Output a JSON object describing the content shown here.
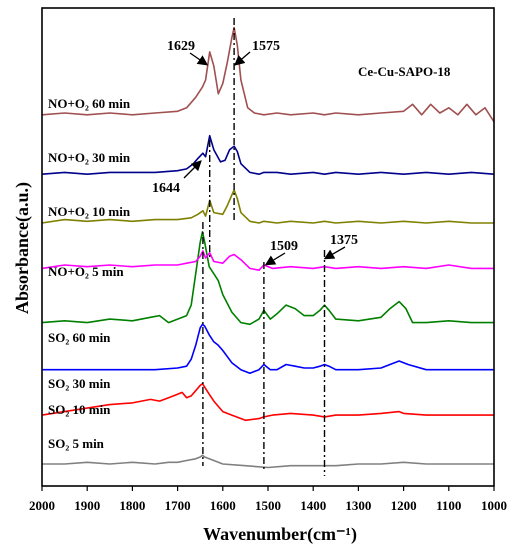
{
  "chart_data": {
    "type": "line",
    "title": "Ce-Cu-SAPO-18",
    "xlabel": "Wavenumber(cm⁻¹)",
    "ylabel": "Absorbance(a.u.)",
    "xlim": [
      2000,
      1000
    ],
    "x_reversed": true,
    "x_ticks": [
      2000,
      1900,
      1800,
      1700,
      1600,
      1500,
      1400,
      1300,
      1200,
      1100,
      1000
    ],
    "y_ticks_shown": false,
    "grid": false,
    "legend": "none",
    "series": [
      {
        "label": "SO₂ 5 min",
        "color": "#808080",
        "baseline": 0,
        "x": [
          2000,
          1950,
          1900,
          1850,
          1800,
          1750,
          1720,
          1700,
          1680,
          1660,
          1650,
          1645,
          1640,
          1620,
          1600,
          1550,
          1500,
          1450,
          1400,
          1375,
          1350,
          1300,
          1250,
          1200,
          1150,
          1100,
          1050,
          1000
        ],
        "y": [
          0.0,
          0.0,
          0.005,
          0.0,
          0.005,
          0.0,
          0.005,
          0.005,
          0.01,
          0.015,
          0.02,
          0.025,
          0.02,
          0.01,
          0.0,
          -0.005,
          -0.01,
          -0.005,
          -0.005,
          -0.005,
          -0.005,
          0.0,
          0.0,
          0.005,
          0.0,
          0.0,
          0.0,
          0.0
        ]
      },
      {
        "label": "SO₂ 10 min",
        "color": "#ff0000",
        "baseline": 0.14,
        "x": [
          2000,
          1950,
          1900,
          1850,
          1800,
          1760,
          1740,
          1720,
          1700,
          1690,
          1680,
          1670,
          1660,
          1650,
          1645,
          1640,
          1630,
          1620,
          1600,
          1580,
          1550,
          1520,
          1509,
          1490,
          1450,
          1400,
          1375,
          1350,
          1300,
          1250,
          1210,
          1200,
          1150,
          1100,
          1050,
          1000
        ],
        "y": [
          0.0,
          0.01,
          0.02,
          0.03,
          0.035,
          0.045,
          0.04,
          0.05,
          0.06,
          0.065,
          0.05,
          0.055,
          0.07,
          0.085,
          0.09,
          0.08,
          0.06,
          0.04,
          0.01,
          0.0,
          -0.015,
          -0.01,
          -0.005,
          0.0,
          0.005,
          0.0,
          -0.005,
          0.0,
          0.0,
          0.005,
          0.01,
          0.005,
          0.0,
          0.0,
          0.0,
          0.0
        ]
      },
      {
        "label": "SO₂ 30 min",
        "color": "#0000ff",
        "baseline": 0.27,
        "x": [
          2000,
          1900,
          1800,
          1750,
          1700,
          1680,
          1670,
          1660,
          1650,
          1645,
          1640,
          1630,
          1620,
          1610,
          1600,
          1580,
          1560,
          1540,
          1520,
          1509,
          1495,
          1480,
          1460,
          1440,
          1420,
          1400,
          1385,
          1375,
          1365,
          1350,
          1300,
          1250,
          1230,
          1210,
          1190,
          1150,
          1100,
          1050,
          1000
        ],
        "y": [
          0.0,
          0.0,
          0.0,
          0.0,
          0.005,
          0.01,
          0.03,
          0.07,
          0.12,
          0.13,
          0.125,
          0.1,
          0.08,
          0.07,
          0.055,
          0.02,
          0.0,
          -0.01,
          0.0,
          0.015,
          0.0,
          0.0,
          0.015,
          0.01,
          0.005,
          0.005,
          0.01,
          0.015,
          0.01,
          0.0,
          0.0,
          0.005,
          0.015,
          0.025,
          0.015,
          0.0,
          0.0,
          0.0,
          0.0
        ]
      },
      {
        "label": "SO₂ 60 min",
        "color": "#008000",
        "baseline": 0.405,
        "x": [
          2000,
          1950,
          1900,
          1850,
          1800,
          1760,
          1740,
          1720,
          1700,
          1680,
          1670,
          1660,
          1650,
          1645,
          1640,
          1630,
          1620,
          1610,
          1600,
          1580,
          1560,
          1540,
          1520,
          1509,
          1495,
          1480,
          1460,
          1440,
          1420,
          1400,
          1385,
          1375,
          1365,
          1350,
          1300,
          1250,
          1230,
          1210,
          1195,
          1180,
          1150,
          1100,
          1050,
          1000
        ],
        "y": [
          0.0,
          0.005,
          0.0,
          0.01,
          0.005,
          0.015,
          0.02,
          0.0,
          0.01,
          0.02,
          0.05,
          0.14,
          0.23,
          0.26,
          0.23,
          0.16,
          0.14,
          0.12,
          0.08,
          0.03,
          0.0,
          -0.005,
          0.01,
          0.035,
          0.01,
          0.025,
          0.05,
          0.04,
          0.02,
          0.02,
          0.035,
          0.05,
          0.035,
          0.01,
          0.005,
          0.015,
          0.04,
          0.06,
          0.04,
          0.0,
          0.0,
          0.005,
          0.0,
          0.0
        ]
      },
      {
        "label": "NO+O₂ 5 min",
        "color": "#ff00ff",
        "baseline": 0.56,
        "x": [
          2000,
          1950,
          1900,
          1850,
          1800,
          1750,
          1700,
          1680,
          1660,
          1650,
          1644,
          1638,
          1629,
          1620,
          1600,
          1585,
          1575,
          1560,
          1540,
          1520,
          1509,
          1490,
          1450,
          1400,
          1375,
          1350,
          1300,
          1250,
          1200,
          1150,
          1100,
          1050,
          1000
        ],
        "y": [
          0.0,
          0.01,
          0.005,
          0.01,
          0.005,
          0.01,
          0.01,
          0.015,
          0.02,
          0.035,
          0.05,
          0.03,
          0.045,
          0.02,
          0.015,
          0.035,
          0.04,
          0.025,
          0.0,
          -0.005,
          0.01,
          0.0,
          0.005,
          0.0,
          0.005,
          0.0,
          0.005,
          0.0,
          0.005,
          0.0,
          0.01,
          0.0,
          0.0
        ]
      },
      {
        "label": "NO+O₂ 10 min",
        "color": "#808000",
        "baseline": 0.69,
        "x": [
          2000,
          1950,
          1900,
          1850,
          1800,
          1750,
          1700,
          1670,
          1655,
          1644,
          1638,
          1629,
          1620,
          1600,
          1590,
          1580,
          1575,
          1568,
          1560,
          1540,
          1520,
          1509,
          1480,
          1450,
          1400,
          1375,
          1350,
          1300,
          1250,
          1200,
          1150,
          1100,
          1050,
          1000
        ],
        "y": [
          0.0,
          0.01,
          0.005,
          0.01,
          0.005,
          0.01,
          0.01,
          0.015,
          0.025,
          0.035,
          0.02,
          0.065,
          0.03,
          0.025,
          0.05,
          0.08,
          0.095,
          0.07,
          0.03,
          0.005,
          0.0,
          0.005,
          0.0,
          0.005,
          0.0,
          0.005,
          0.0,
          0.005,
          0.0,
          0.005,
          0.0,
          0.005,
          0.0,
          0.0
        ]
      },
      {
        "label": "NO+O₂ 30 min",
        "color": "#00008b",
        "baseline": 0.83,
        "x": [
          2000,
          1950,
          1900,
          1850,
          1800,
          1750,
          1700,
          1680,
          1665,
          1655,
          1644,
          1638,
          1629,
          1620,
          1605,
          1595,
          1585,
          1575,
          1568,
          1560,
          1540,
          1520,
          1509,
          1480,
          1450,
          1400,
          1375,
          1350,
          1300,
          1250,
          1200,
          1150,
          1100,
          1050,
          1000
        ],
        "y": [
          0.0,
          0.005,
          0.0,
          0.005,
          0.005,
          0.005,
          0.01,
          0.015,
          0.03,
          0.045,
          0.06,
          0.05,
          0.11,
          0.07,
          0.035,
          0.04,
          0.07,
          0.08,
          0.065,
          0.03,
          0.005,
          0.0,
          0.005,
          0.005,
          0.0,
          0.005,
          0.0,
          0.005,
          0.0,
          0.005,
          0.0,
          0.005,
          0.0,
          0.005,
          0.0
        ]
      },
      {
        "label": "NO+O₂ 60 min",
        "color": "#a05050",
        "baseline": 1.0,
        "x": [
          2000,
          1950,
          1900,
          1850,
          1800,
          1750,
          1700,
          1680,
          1660,
          1645,
          1638,
          1629,
          1620,
          1610,
          1600,
          1590,
          1580,
          1575,
          1568,
          1560,
          1545,
          1530,
          1509,
          1480,
          1450,
          1400,
          1375,
          1350,
          1300,
          1250,
          1200,
          1180,
          1160,
          1140,
          1120,
          1100,
          1080,
          1060,
          1040,
          1020,
          1000
        ],
        "y": [
          0.0,
          0.005,
          0.0,
          0.005,
          0.0,
          0.005,
          0.01,
          0.02,
          0.05,
          0.08,
          0.1,
          0.18,
          0.14,
          0.06,
          0.09,
          0.15,
          0.22,
          0.25,
          0.2,
          0.1,
          0.02,
          0.005,
          0.0,
          0.005,
          0.0,
          0.005,
          0.0,
          0.005,
          0.0,
          0.005,
          0.01,
          0.03,
          0.0,
          0.03,
          0.005,
          0.02,
          0.0,
          0.03,
          0.0,
          0.02,
          -0.02
        ]
      }
    ],
    "reference_lines": [
      {
        "x": 1644,
        "label": "1644"
      },
      {
        "x": 1629,
        "label": "1629"
      },
      {
        "x": 1575,
        "label": "1575"
      },
      {
        "x": 1509,
        "label": "1509"
      },
      {
        "x": 1375,
        "label": "1375"
      }
    ]
  }
}
